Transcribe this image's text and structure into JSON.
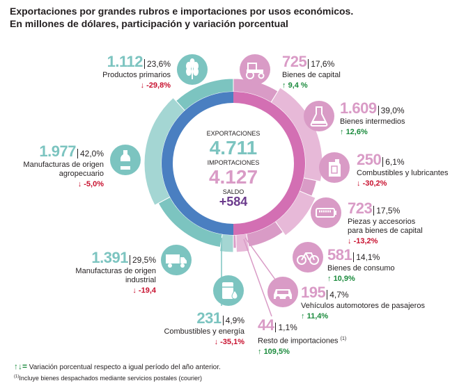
{
  "title_line1": "Exportaciones por grandes rubros e importaciones por usos económicos.",
  "title_line2": "En millones de dólares, participación y variación porcentual",
  "center": {
    "exp_label": "EXPORTACIONES",
    "exp_value": "4.711",
    "imp_label": "IMPORTACIONES",
    "imp_value": "4.127",
    "saldo_label": "SALDO",
    "saldo_value": "+584",
    "ring_exp_label": "EXPORTACIONES",
    "ring_imp_label": "IMPORTACIONES"
  },
  "colors": {
    "export": "#7cc4c0",
    "import": "#d99bc6",
    "export_inner": "#4a7fc1",
    "import_inner": "#d36fb3",
    "saldo": "#6b3a8c"
  },
  "chart_data": {
    "type": "pie",
    "exportaciones": [
      {
        "label": "Productos primarios",
        "value_text": "1.112",
        "share_text": "23,6%",
        "var_text": "-29,8%",
        "value": 1112,
        "share": 23.6,
        "var": -29.8,
        "icon": "wheat-icon"
      },
      {
        "label": "Manufacturas de origen agropecuario",
        "value_text": "1.977",
        "share_text": "42,0%",
        "var_text": "-5,0%",
        "value": 1977,
        "share": 42.0,
        "var": -5.0,
        "icon": "bottle-icon"
      },
      {
        "label": "Manufacturas de origen industrial",
        "value_text": "1.391",
        "share_text": "29,5%",
        "var_text": "-19,4",
        "value": 1391,
        "share": 29.5,
        "var": -19.4,
        "icon": "truck-icon"
      },
      {
        "label": "Combustibles y energía",
        "value_text": "231",
        "share_text": "4,9%",
        "var_text": "-35,1%",
        "value": 231,
        "share": 4.9,
        "var": -35.1,
        "icon": "fuel-drum-icon"
      }
    ],
    "importaciones": [
      {
        "label": "Bienes de capital",
        "value_text": "725",
        "share_text": "17,6%",
        "var_text": "9,4 %",
        "value": 725,
        "share": 17.6,
        "var": 9.4,
        "icon": "tractor-icon"
      },
      {
        "label": "Bienes intermedios",
        "value_text": "1.609",
        "share_text": "39,0%",
        "var_text": "12,6%",
        "value": 1609,
        "share": 39.0,
        "var": 12.6,
        "icon": "flask-icon"
      },
      {
        "label": "Combustibles y lubricantes",
        "value_text": "250",
        "share_text": "6,1%",
        "var_text": "-30,2%",
        "value": 250,
        "share": 6.1,
        "var": -30.2,
        "icon": "jerrycan-icon"
      },
      {
        "label": "Piezas y accesorios para bienes de capital",
        "value_text": "723",
        "share_text": "17,5%",
        "var_text": "-13,2%",
        "value": 723,
        "share": 17.5,
        "var": -13.2,
        "icon": "battery-icon"
      },
      {
        "label": "Bienes de consumo",
        "value_text": "581",
        "share_text": "14,1%",
        "var_text": "10,9%",
        "value": 581,
        "share": 14.1,
        "var": 10.9,
        "icon": "bicycle-icon"
      },
      {
        "label": "Vehículos automotores de pasajeros",
        "value_text": "195",
        "share_text": "4,7%",
        "var_text": "11,4%",
        "value": 195,
        "share": 4.7,
        "var": 11.4,
        "icon": "car-icon"
      },
      {
        "label": "Resto de importaciones",
        "label_sup": "(1)",
        "value_text": "44",
        "share_text": "1,1%",
        "var_text": "109,5%",
        "value": 44,
        "share": 1.1,
        "var": 109.5,
        "icon": "none"
      }
    ]
  },
  "footer": {
    "arrows_glyph": "↑↓=",
    "arrows_text": "Variación porcentual respecto a igual período del año anterior.",
    "note_sup": "(1)",
    "note_text": "Incluye bienes despachados mediante servicios postales (courier)"
  }
}
